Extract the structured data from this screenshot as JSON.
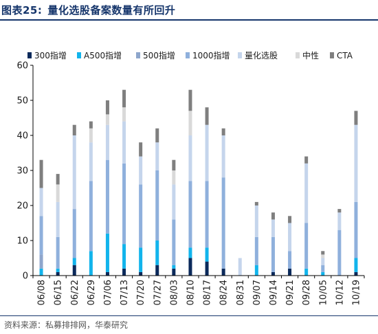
{
  "figure": {
    "number": "图表25:",
    "title": "量化选股备案数量有所回升",
    "source": "资料来源：私募排排网，华泰研究"
  },
  "chart_data": {
    "type": "bar",
    "stacked": true,
    "title": "",
    "xlabel": "",
    "ylabel": "",
    "ylim": [
      0,
      60
    ],
    "yticks": [
      0,
      10,
      20,
      30,
      40,
      50,
      60
    ],
    "grid": false,
    "legend_position": "top",
    "categories": [
      "06/08",
      "06/15",
      "06/22",
      "06/29",
      "07/06",
      "07/13",
      "07/20",
      "07/27",
      "08/03",
      "08/10",
      "08/17",
      "08/24",
      "08/31",
      "09/07",
      "09/14",
      "09/21",
      "09/28",
      "10/05",
      "10/12",
      "10/19"
    ],
    "series": [
      {
        "name": "300指增",
        "color": "#0b2a5b",
        "values": [
          0,
          1,
          3,
          0,
          1,
          2,
          1,
          3,
          2,
          5,
          4,
          2,
          0,
          0,
          1,
          2,
          0,
          0,
          0,
          1
        ]
      },
      {
        "name": "A500指增",
        "color": "#12b4ec",
        "values": [
          2,
          1,
          2,
          7,
          11,
          7,
          7,
          7,
          1,
          3,
          4,
          0,
          0,
          3,
          0,
          0,
          2,
          1,
          0,
          4
        ]
      },
      {
        "name": "500指增",
        "color": "#8ea6cc",
        "values": [
          4,
          0,
          0,
          0,
          0,
          0,
          0,
          0,
          0,
          0,
          0,
          0,
          0,
          0,
          0,
          0,
          0,
          0,
          0,
          0
        ]
      },
      {
        "name": "1000指增",
        "color": "#8fb0dc",
        "values": [
          11,
          9,
          14,
          20,
          21,
          23,
          18,
          20,
          13,
          19,
          19,
          26,
          0,
          8,
          10,
          5,
          13,
          2,
          13,
          16
        ]
      },
      {
        "name": "量化选股",
        "color": "#c5d5ec",
        "values": [
          8,
          10,
          21,
          11,
          10,
          12,
          8,
          8,
          10,
          13,
          16,
          12,
          5,
          9,
          5,
          8,
          17,
          2,
          5,
          22
        ]
      },
      {
        "name": "中性",
        "color": "#d9d9d9",
        "values": [
          0,
          5,
          0,
          4,
          3,
          4,
          0,
          0,
          4,
          7,
          0,
          0,
          0,
          0,
          0,
          0,
          0,
          1,
          0,
          0
        ]
      },
      {
        "name": "CTA",
        "color": "#7f7f7f",
        "values": [
          8,
          3,
          3,
          2,
          4,
          5,
          4,
          4,
          3,
          6,
          5,
          2,
          0,
          1,
          2,
          2,
          2,
          1,
          1,
          4
        ]
      }
    ]
  }
}
